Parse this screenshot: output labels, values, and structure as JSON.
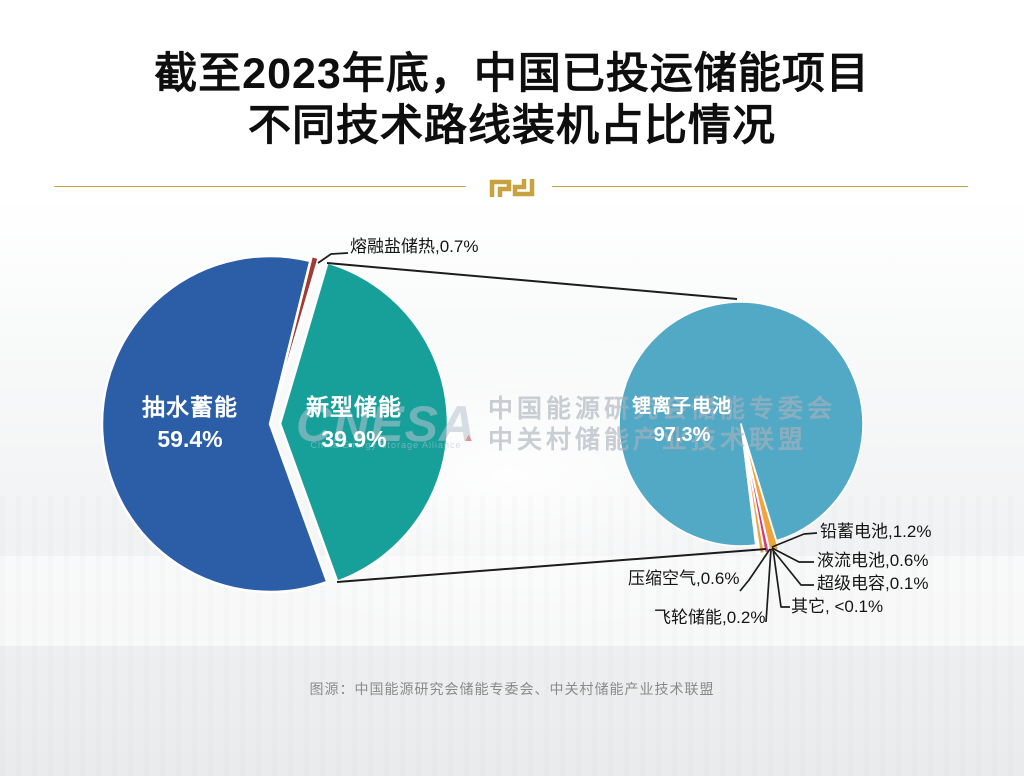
{
  "title": {
    "line1": "截至2023年底，中国已投运储能项目",
    "line2": "不同技术路线装机占比情况"
  },
  "source": "图源：中国能源研究会储能专委会、中关村储能产业技术联盟",
  "watermark": {
    "brand": "CNESA",
    "brand_sub": "China Energy Storage Alliance",
    "line1": "中国能源研究会储能专委会",
    "line2": "中关村储能产业技术联盟"
  },
  "colors": {
    "pumped_blue": "#2B5EA7",
    "newtype_teal": "#17A09A",
    "molten_red": "#A23B34",
    "liion_blue": "#52A9C6",
    "lead_orange": "#F0A33C",
    "flow_magenta": "#D23A72",
    "air_orange": "#F0A33C",
    "tiny_white": "#FFFFFF",
    "line_black": "#1C1C1C",
    "gold": "#C7A545"
  },
  "callouts": {
    "molten": "熔融盐储热,0.7%",
    "lead": "铅蓄电池,1.2%",
    "flow": "液流电池,0.6%",
    "supercap": "超级电容,0.1%",
    "other": "其它, <0.1%",
    "air": "压缩空气,0.6%",
    "flywheel": "飞轮储能,0.2%"
  },
  "chart_data": {
    "type": "pie",
    "title": "截至2023年底，中国已投运储能项目不同技术路线装机占比情况",
    "legend_position": "none",
    "layout": "pie-of-pie",
    "primary": {
      "center": [
        270,
        424
      ],
      "radius": 168,
      "start_angle_deg": 13.9,
      "slices": [
        {
          "label": "熔融盐储热",
          "value_pct": 0.7,
          "pct_text": "0.7%",
          "color": "#A23B34",
          "explode": 5
        },
        {
          "label": "新型储能",
          "value_pct": 39.9,
          "pct_text": "39.9%",
          "color": "#17A09A",
          "explode": 10
        },
        {
          "label": "抽水蓄能",
          "value_pct": 59.4,
          "pct_text": "59.4%",
          "color": "#2B5EA7",
          "explode": 0
        }
      ]
    },
    "secondary": {
      "note": "breakdown of 新型储能",
      "center": [
        741,
        424
      ],
      "radius": 122,
      "start_angle_deg": 173,
      "slices": [
        {
          "label": "锂离子电池",
          "value_pct": 97.3,
          "pct_text": "97.3%",
          "color": "#52A9C6",
          "explode": 0
        },
        {
          "label": "铅蓄电池",
          "value_pct": 1.2,
          "pct_text": "1.2%",
          "color": "#F0A33C",
          "explode": 9
        },
        {
          "label": "液流电池",
          "value_pct": 0.6,
          "pct_text": "0.6%",
          "color": "#D23A72",
          "explode": 9
        },
        {
          "label": "压缩空气",
          "value_pct": 0.6,
          "pct_text": "0.6%",
          "color": "#F0A33C",
          "explode": 9
        },
        {
          "label": "飞轮储能",
          "value_pct": 0.2,
          "pct_text": "0.2%",
          "color": "#FFFFFF",
          "explode": 9
        },
        {
          "label": "超级电容",
          "value_pct": 0.1,
          "pct_text": "0.1%",
          "color": "#FFFFFF",
          "explode": 9
        },
        {
          "label": "其它",
          "value_pct": 0.05,
          "pct_text": "<0.1%",
          "color": "#FFFFFF",
          "explode": 9
        }
      ]
    }
  }
}
